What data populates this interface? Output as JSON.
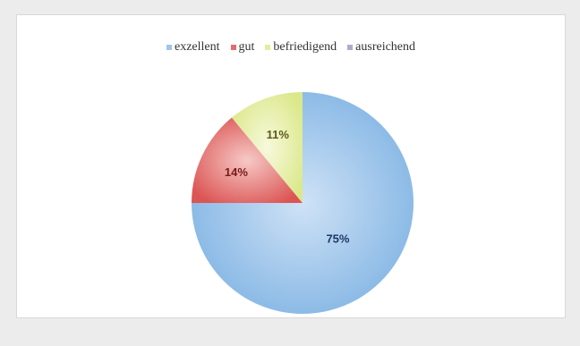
{
  "chart_data": {
    "type": "pie",
    "title": "",
    "categories": [
      "exzellent",
      "gut",
      "befriedigend",
      "ausreichend"
    ],
    "values": [
      75,
      14,
      11,
      0
    ],
    "value_labels": [
      "75%",
      "14%",
      "11%",
      ""
    ],
    "colors": [
      "#9fc5ea",
      "#e46c6a",
      "#e3ed9c",
      "#b3a8cc"
    ],
    "label_colors": [
      "#1f3864",
      "#7a1a1a",
      "#5b5b1f",
      "#3c3557"
    ],
    "legend_position": "top"
  }
}
